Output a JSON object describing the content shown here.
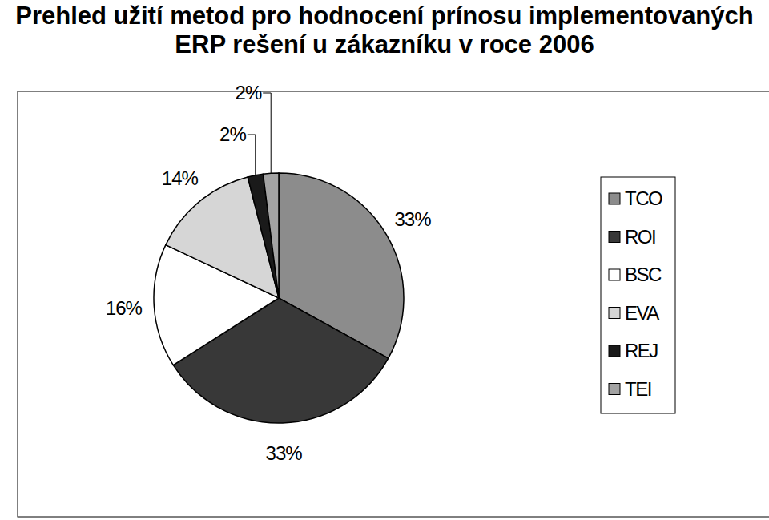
{
  "chart_data": {
    "type": "pie",
    "title": "Prehled užití metod pro hodnocení prínosu implementovaných ERP rešení u zákazníku v roce 2006",
    "categories": [
      "TCO",
      "ROI",
      "BSC",
      "EVA",
      "REJ",
      "TEI"
    ],
    "values": [
      33,
      33,
      16,
      14,
      2,
      2
    ],
    "value_labels": [
      "33%",
      "33%",
      "16%",
      "14%",
      "2%",
      "2%"
    ],
    "colors": [
      "#8c8c8c",
      "#383838",
      "#ffffff",
      "#d6d6d6",
      "#1a1a1a",
      "#a3a3a3"
    ],
    "data_labels": true,
    "legend": "right"
  }
}
